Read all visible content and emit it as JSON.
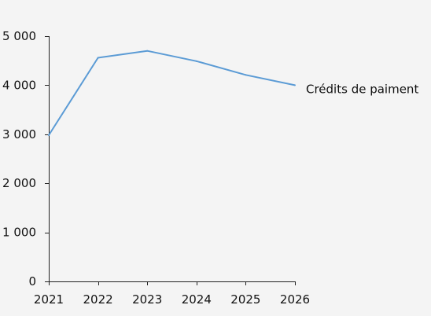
{
  "chart_data": {
    "type": "line",
    "x": [
      2021,
      2022,
      2023,
      2024,
      2025,
      2026
    ],
    "x_tick_labels": [
      "2021",
      "2022",
      "2023",
      "2024",
      "2025",
      "2026"
    ],
    "y_ticks": [
      0,
      1000,
      2000,
      3000,
      4000,
      5000
    ],
    "y_tick_labels": [
      "0",
      "1 000",
      "2 000",
      "3 000",
      "4 000",
      "5 000"
    ],
    "ylim": [
      0,
      5000
    ],
    "grid": false,
    "series": [
      {
        "name": "Crédits de paiment",
        "values": [
          2980,
          4560,
          4700,
          4490,
          4210,
          4000
        ],
        "color": "#5b9bd5"
      }
    ],
    "title": "",
    "xlabel": "",
    "ylabel": ""
  }
}
